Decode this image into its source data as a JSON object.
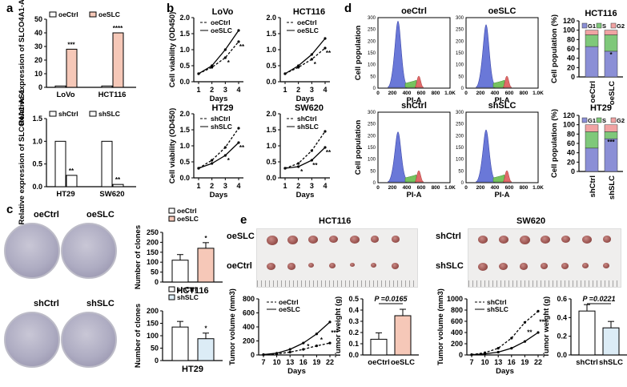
{
  "panels": {
    "a": {
      "letter": "a",
      "top": {
        "ylabel": "Relative expression of SLCO4A1-AS1",
        "legend": [
          "oeCtrl",
          "oeSLC"
        ],
        "groups": [
          "LoVo",
          "HCT116"
        ],
        "yticks": [
          "0",
          "10",
          "20",
          "30",
          "40",
          "50"
        ],
        "ctrl": [
          1,
          1
        ],
        "treat": [
          28,
          40
        ],
        "sig": [
          "***",
          "****"
        ]
      },
      "bottom": {
        "ylabel": "Relative expression of SLCO4A1-AS1",
        "legend": [
          "shCtrl",
          "shSLC"
        ],
        "groups": [
          "HT29",
          "SW620"
        ],
        "yticks": [
          "0.0",
          "0.5",
          "1.0",
          "1.5"
        ],
        "ctrl": [
          1.0,
          1.0
        ],
        "treat": [
          0.25,
          0.05
        ],
        "sig": [
          "**",
          "**"
        ]
      }
    },
    "b": {
      "letter": "b",
      "xlabel": "Days",
      "ylabel": "Cell viability (OD450)",
      "yticks": [
        "0.0",
        "0.5",
        "1.0",
        "1.5",
        "2.0"
      ],
      "xticks": [
        "1",
        "2",
        "3",
        "4"
      ],
      "charts": [
        {
          "title": "LoVo",
          "legend": [
            "oeCtrl",
            "oeSLC"
          ],
          "ctrl": [
            0.25,
            0.45,
            0.75,
            1.25
          ],
          "treat": [
            0.25,
            0.5,
            1.0,
            1.6
          ],
          "sig": [
            "*",
            "**"
          ]
        },
        {
          "title": "HCT116",
          "legend": [
            "oeCtrl",
            "oeSLC"
          ],
          "ctrl": [
            0.25,
            0.45,
            0.7,
            1.05
          ],
          "treat": [
            0.25,
            0.5,
            0.85,
            1.35
          ],
          "sig": [
            "*",
            "**"
          ]
        },
        {
          "title": "HT29",
          "legend": [
            "shCtrl",
            "shSLC"
          ],
          "ctrl": [
            0.3,
            0.55,
            0.95,
            1.55
          ],
          "treat": [
            0.3,
            0.45,
            0.7,
            1.1
          ],
          "sig": [
            "*",
            "**"
          ]
        },
        {
          "title": "SW620",
          "legend": [
            "shCtrl",
            "shSLC"
          ],
          "ctrl": [
            0.3,
            0.45,
            0.85,
            1.45
          ],
          "treat": [
            0.3,
            0.35,
            0.55,
            0.95
          ],
          "sig": [
            "*",
            "**",
            "**"
          ]
        }
      ]
    },
    "c": {
      "letter": "c",
      "dish_labels": [
        "oeCtrl",
        "oeSLC",
        "shCtrl",
        "shSLC"
      ],
      "charts": [
        {
          "title": "HCT116",
          "legend": [
            "oeCtrl",
            "oeSLC"
          ],
          "ylabel": "Number of clones",
          "yticks": [
            "0",
            "50",
            "100",
            "150",
            "200",
            "250"
          ],
          "values": [
            110,
            170
          ],
          "sig": "*"
        },
        {
          "title": "HT29",
          "legend": [
            "shCtrl",
            "shSLC"
          ],
          "ylabel": "Number of clones",
          "yticks": [
            "0",
            "50",
            "100",
            "150",
            "200"
          ],
          "values": [
            135,
            88
          ],
          "sig": "*"
        }
      ]
    },
    "d": {
      "letter": "d",
      "flow": [
        {
          "title": "oeCtrl",
          "xlabel": "PI-A",
          "ylabel": "Cell population"
        },
        {
          "title": "oeSLC",
          "xlabel": "PI-A",
          "ylabel": "Cell population"
        },
        {
          "title": "shCtrl",
          "xlabel": "PI-A",
          "ylabel": "Cell population"
        },
        {
          "title": "shSLC",
          "xlabel": "PI-A",
          "ylabel": "Cell population"
        }
      ],
      "flow_yticks": [
        "0",
        "50",
        "100",
        "150",
        "200",
        "250",
        "300"
      ],
      "flow_xticks": [
        "0",
        "200",
        "400",
        "600",
        "800",
        "1.0K"
      ],
      "stacked": [
        {
          "title": "HCT116",
          "legend": [
            "G1",
            "S",
            "G2"
          ],
          "ylabel": "Cell population (%)",
          "yticks": [
            "0",
            "20",
            "40",
            "60",
            "80",
            "100",
            "120"
          ],
          "groups": [
            "oeCtrl",
            "oeSLC"
          ],
          "g1": [
            65,
            55
          ],
          "s": [
            25,
            35
          ],
          "g2": [
            10,
            10
          ],
          "sig": [
            "",
            "*"
          ]
        },
        {
          "title": "HT29",
          "legend": [
            "G1",
            "S",
            "G2"
          ],
          "ylabel": "Cell population (%)",
          "yticks": [
            "0",
            "20",
            "40",
            "60",
            "80",
            "100",
            "120"
          ],
          "groups": [
            "shCtrl",
            "shSLC"
          ],
          "g1": [
            50,
            70
          ],
          "s": [
            35,
            15
          ],
          "g2": [
            15,
            15
          ],
          "sig": [
            "",
            "***"
          ]
        }
      ]
    },
    "e": {
      "letter": "e",
      "left": {
        "title": "HCT116",
        "row_labels": [
          "oeSLC",
          "oeCtrl"
        ],
        "growth": {
          "ylabel": "Tumor volume (mm3)",
          "xlabel": "Days",
          "legend": [
            "oeCtrl",
            "oeSLC"
          ],
          "xticks": [
            "7",
            "10",
            "13",
            "16",
            "19",
            "22"
          ],
          "yticks": [
            "0",
            "200",
            "400",
            "600",
            "800"
          ],
          "ctrl": [
            5,
            15,
            40,
            80,
            130,
            170
          ],
          "treat": [
            5,
            25,
            80,
            170,
            300,
            470
          ],
          "sig": [
            "*",
            "*",
            "***"
          ]
        },
        "weight": {
          "ylabel": "Tumor weight (g)",
          "pvalue": "P =0.0165",
          "yticks": [
            "0.0",
            "0.1",
            "0.2",
            "0.3",
            "0.4",
            "0.5"
          ],
          "groups": [
            "oeCtrl",
            "oeSLC"
          ],
          "values": [
            0.14,
            0.35
          ]
        }
      },
      "right": {
        "title": "SW620",
        "row_labels": [
          "shCtrl",
          "shSLC"
        ],
        "growth": {
          "ylabel": "Tumor volume (mm3)",
          "xlabel": "Days",
          "legend": [
            "shCtrl",
            "shSLC"
          ],
          "xticks": [
            "7",
            "10",
            "13",
            "16",
            "19",
            "22"
          ],
          "yticks": [
            "0",
            "200",
            "400",
            "600",
            "800",
            "1000"
          ],
          "ctrl": [
            5,
            40,
            120,
            300,
            580,
            780
          ],
          "treat": [
            5,
            20,
            50,
            120,
            240,
            400
          ],
          "sig": [
            "**",
            "***"
          ]
        },
        "weight": {
          "ylabel": "Tumor weight (g)",
          "pvalue": "P =0.0221",
          "yticks": [
            "0.0",
            "0.2",
            "0.4",
            "0.6"
          ],
          "groups": [
            "shCtrl",
            "shSLC"
          ],
          "values": [
            0.47,
            0.29
          ]
        }
      }
    }
  },
  "colors": {
    "ctrl_fill": "#ffffff",
    "treat_fill": "#f6c8b8",
    "sh_fill": "#dcecf6",
    "g1": "#8b8fd6",
    "s": "#7fc87a",
    "g2": "#f1a3a3",
    "flow_g1": "#6a78d8",
    "flow_s": "#77c35f",
    "flow_g2": "#e06a6a"
  }
}
